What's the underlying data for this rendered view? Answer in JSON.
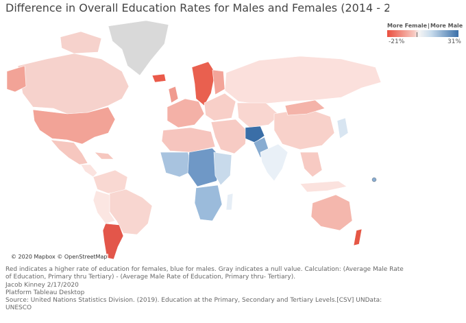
{
  "title": "Difference in Overall Education Rates for Males and Females (2014 - 2018)",
  "legend": {
    "title_left": "More Female",
    "separator": "|",
    "title_right": "More Male",
    "min_label": "-21%",
    "max_label": "31%",
    "min_value": -21,
    "max_value": 31,
    "color_female": "#ea4f3f",
    "color_male": "#3b6fa8",
    "color_null": "#d9d9d9"
  },
  "attribution": "© 2020 Mapbox © OpenStreetMap",
  "footer": {
    "line1": "Red indicates a higher rate of education for females, blue for males. Gray indicates a null value. Calculation: (Average Male Rate",
    "line2": "of Education, Primary thru Tertiary) - (Average Male Rate of Education, Primary thru- Tertiary).",
    "line3": "Jacob Kinney 2/17/2020",
    "line4": "Platform Tableau Desktop",
    "line5": "Source: United Nations Statistics Division. (2019). Education at the Primary, Secondary and Tertiary Levels.[CSV] UNData:",
    "line6": "UNESCO"
  }
}
